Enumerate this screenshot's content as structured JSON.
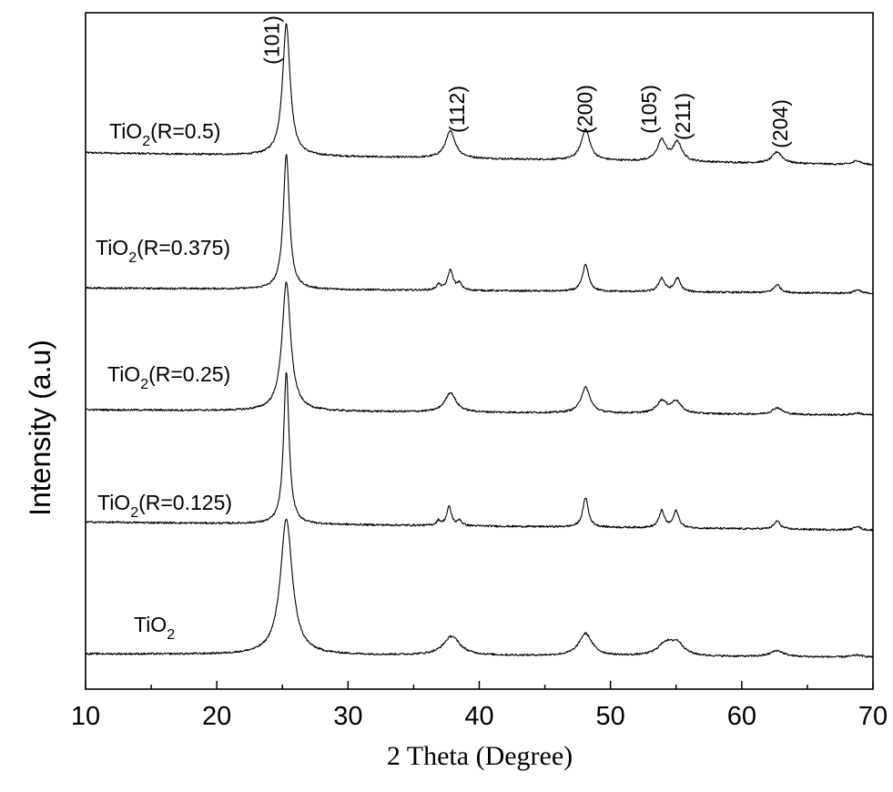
{
  "chart_data": {
    "type": "line",
    "xlabel": "2 Theta (Degree)",
    "ylabel": "Intensity (a.u)",
    "xlim": [
      10,
      70
    ],
    "x_ticks": [
      10,
      20,
      30,
      40,
      50,
      60,
      70
    ],
    "y_ticks_shown": false,
    "grid": false,
    "legend": "none",
    "line_color": "#000000",
    "series": [
      {
        "name": "TiO2(R=0.5)",
        "label_parts": [
          "TiO",
          "2",
          "(R=0.5)"
        ],
        "baseline": 0.775,
        "baseline_drift": 0.018,
        "peaks": [
          {
            "x": 25.3,
            "h": 0.195,
            "w": 0.35
          },
          {
            "x": 37.8,
            "h": 0.04,
            "w": 0.45
          },
          {
            "x": 48.1,
            "h": 0.046,
            "w": 0.4
          },
          {
            "x": 53.9,
            "h": 0.031,
            "w": 0.4
          },
          {
            "x": 55.1,
            "h": 0.028,
            "w": 0.4
          },
          {
            "x": 62.7,
            "h": 0.017,
            "w": 0.45
          },
          {
            "x": 68.8,
            "h": 0.006,
            "w": 0.35
          }
        ]
      },
      {
        "name": "TiO2(R=0.375)",
        "label_parts": [
          "TiO",
          "2",
          "(R=0.375)"
        ],
        "baseline": 0.585,
        "baseline_drift": 0.008,
        "peaks": [
          {
            "x": 25.3,
            "h": 0.2,
            "w": 0.28
          },
          {
            "x": 36.9,
            "h": 0.008,
            "w": 0.2
          },
          {
            "x": 37.8,
            "h": 0.03,
            "w": 0.25
          },
          {
            "x": 38.5,
            "h": 0.01,
            "w": 0.2
          },
          {
            "x": 48.1,
            "h": 0.04,
            "w": 0.28
          },
          {
            "x": 53.9,
            "h": 0.02,
            "w": 0.28
          },
          {
            "x": 55.1,
            "h": 0.02,
            "w": 0.28
          },
          {
            "x": 62.7,
            "h": 0.012,
            "w": 0.3
          },
          {
            "x": 68.8,
            "h": 0.005,
            "w": 0.3
          }
        ]
      },
      {
        "name": "TiO2(R=0.25)",
        "label_parts": [
          "TiO",
          "2",
          "(R=0.25)"
        ],
        "baseline": 0.405,
        "baseline_drift": 0.008,
        "peaks": [
          {
            "x": 25.3,
            "h": 0.19,
            "w": 0.4
          },
          {
            "x": 37.8,
            "h": 0.029,
            "w": 0.5
          },
          {
            "x": 48.1,
            "h": 0.038,
            "w": 0.42
          },
          {
            "x": 53.9,
            "h": 0.018,
            "w": 0.45
          },
          {
            "x": 55.0,
            "h": 0.018,
            "w": 0.45
          },
          {
            "x": 62.7,
            "h": 0.01,
            "w": 0.45
          },
          {
            "x": 68.8,
            "h": 0.003,
            "w": 0.4
          }
        ]
      },
      {
        "name": "TiO2(R=0.125)",
        "label_parts": [
          "TiO",
          "2",
          "(R=0.125)"
        ],
        "baseline": 0.235,
        "baseline_drift": 0.012,
        "peaks": [
          {
            "x": 25.3,
            "h": 0.225,
            "w": 0.25
          },
          {
            "x": 36.9,
            "h": 0.007,
            "w": 0.18
          },
          {
            "x": 37.7,
            "h": 0.028,
            "w": 0.22
          },
          {
            "x": 38.5,
            "h": 0.008,
            "w": 0.18
          },
          {
            "x": 48.1,
            "h": 0.044,
            "w": 0.25
          },
          {
            "x": 53.9,
            "h": 0.025,
            "w": 0.25
          },
          {
            "x": 55.0,
            "h": 0.025,
            "w": 0.25
          },
          {
            "x": 62.7,
            "h": 0.012,
            "w": 0.28
          },
          {
            "x": 68.8,
            "h": 0.006,
            "w": 0.25
          }
        ]
      },
      {
        "name": "TiO2",
        "label_parts": [
          "TiO",
          "2",
          ""
        ],
        "baseline": 0.047,
        "baseline_drift": 0.005,
        "peaks": [
          {
            "x": 25.3,
            "h": 0.2,
            "w": 0.55
          },
          {
            "x": 37.9,
            "h": 0.028,
            "w": 0.75
          },
          {
            "x": 48.1,
            "h": 0.033,
            "w": 0.6
          },
          {
            "x": 54.2,
            "h": 0.018,
            "w": 0.7
          },
          {
            "x": 55.1,
            "h": 0.017,
            "w": 0.6
          },
          {
            "x": 62.7,
            "h": 0.009,
            "w": 0.6
          },
          {
            "x": 68.8,
            "h": 0.003,
            "w": 0.5
          }
        ]
      }
    ],
    "peak_annotations": [
      {
        "label": "(101)",
        "x": 25.3
      },
      {
        "label": "(112)",
        "x": 37.8
      },
      {
        "label": "(200)",
        "x": 48.1
      },
      {
        "label": "(105)",
        "x": 53.9
      },
      {
        "label": "(211)",
        "x": 55.1
      },
      {
        "label": "(204)",
        "x": 62.7
      }
    ]
  }
}
